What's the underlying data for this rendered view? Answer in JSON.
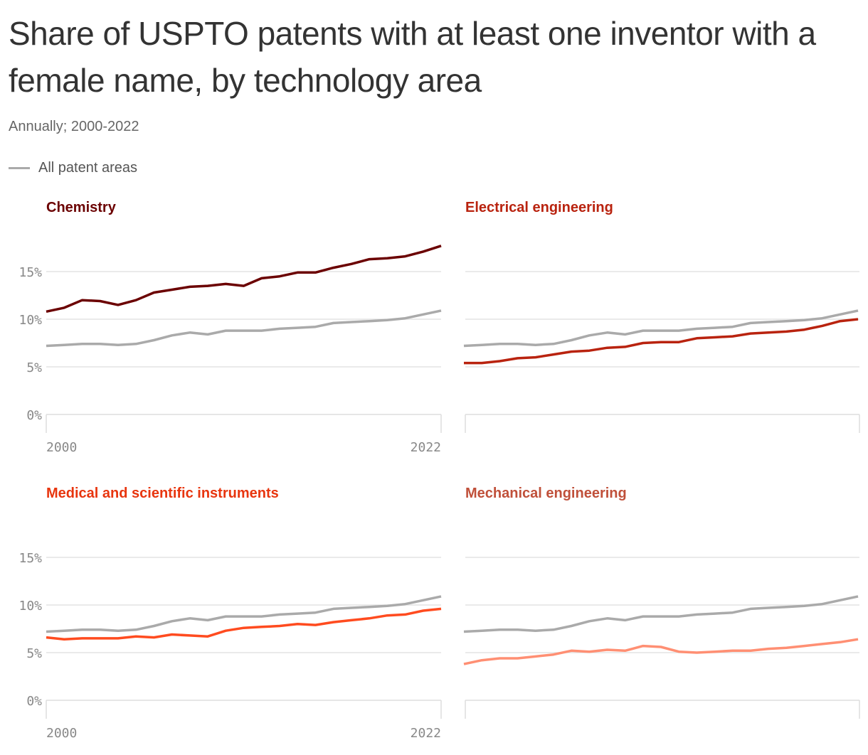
{
  "title": "Share of USPTO patents with at least one inventor with a female name, by technology area",
  "subtitle": "Annually; 2000-2022",
  "legend": {
    "label": "All patent areas",
    "color": "#aaaaaa"
  },
  "chart_data": {
    "type": "line",
    "x": [
      2000,
      2001,
      2002,
      2003,
      2004,
      2005,
      2006,
      2007,
      2008,
      2009,
      2010,
      2011,
      2012,
      2013,
      2014,
      2015,
      2016,
      2017,
      2018,
      2019,
      2020,
      2021,
      2022
    ],
    "ylim": [
      0,
      18
    ],
    "yticks": [
      "0%",
      "5%",
      "10%",
      "15%"
    ],
    "xticks": [
      "2000",
      "2022"
    ],
    "grid": true,
    "reference_series": {
      "name": "All patent areas",
      "color": "#aaaaaa",
      "values": [
        7.2,
        7.3,
        7.4,
        7.4,
        7.3,
        7.4,
        7.8,
        8.3,
        8.6,
        8.4,
        8.8,
        8.8,
        8.8,
        9.0,
        9.1,
        9.2,
        9.6,
        9.7,
        9.8,
        9.9,
        10.1,
        10.5,
        10.9
      ]
    },
    "panels": [
      {
        "name": "Chemistry",
        "color": "#6b0000",
        "title_color": "#6b0000",
        "values": [
          10.8,
          11.2,
          12.0,
          11.9,
          11.5,
          12.0,
          12.8,
          13.1,
          13.4,
          13.5,
          13.7,
          13.5,
          14.3,
          14.5,
          14.9,
          14.9,
          15.4,
          15.8,
          16.3,
          16.4,
          16.6,
          17.1,
          17.7
        ]
      },
      {
        "name": "Electrical engineering",
        "color": "#b9230f",
        "title_color": "#b9230f",
        "values": [
          5.4,
          5.4,
          5.6,
          5.9,
          6.0,
          6.3,
          6.6,
          6.7,
          7.0,
          7.1,
          7.5,
          7.6,
          7.6,
          8.0,
          8.1,
          8.2,
          8.5,
          8.6,
          8.7,
          8.9,
          9.3,
          9.8,
          10.0
        ]
      },
      {
        "name": "Medical and scientific instruments",
        "color": "#ff4b1f",
        "title_color": "#e8350e",
        "values": [
          6.6,
          6.4,
          6.5,
          6.5,
          6.5,
          6.7,
          6.6,
          6.9,
          6.8,
          6.7,
          7.3,
          7.6,
          7.7,
          7.8,
          8.0,
          7.9,
          8.2,
          8.4,
          8.6,
          8.9,
          9.0,
          9.4,
          9.6
        ]
      },
      {
        "name": "Mechanical engineering",
        "color": "#ff8f73",
        "title_color": "#c0503a",
        "values": [
          3.8,
          4.2,
          4.4,
          4.4,
          4.6,
          4.8,
          5.2,
          5.1,
          5.3,
          5.2,
          5.7,
          5.6,
          5.1,
          5.0,
          5.1,
          5.2,
          5.2,
          5.4,
          5.5,
          5.7,
          5.9,
          6.1,
          6.4
        ]
      }
    ]
  }
}
